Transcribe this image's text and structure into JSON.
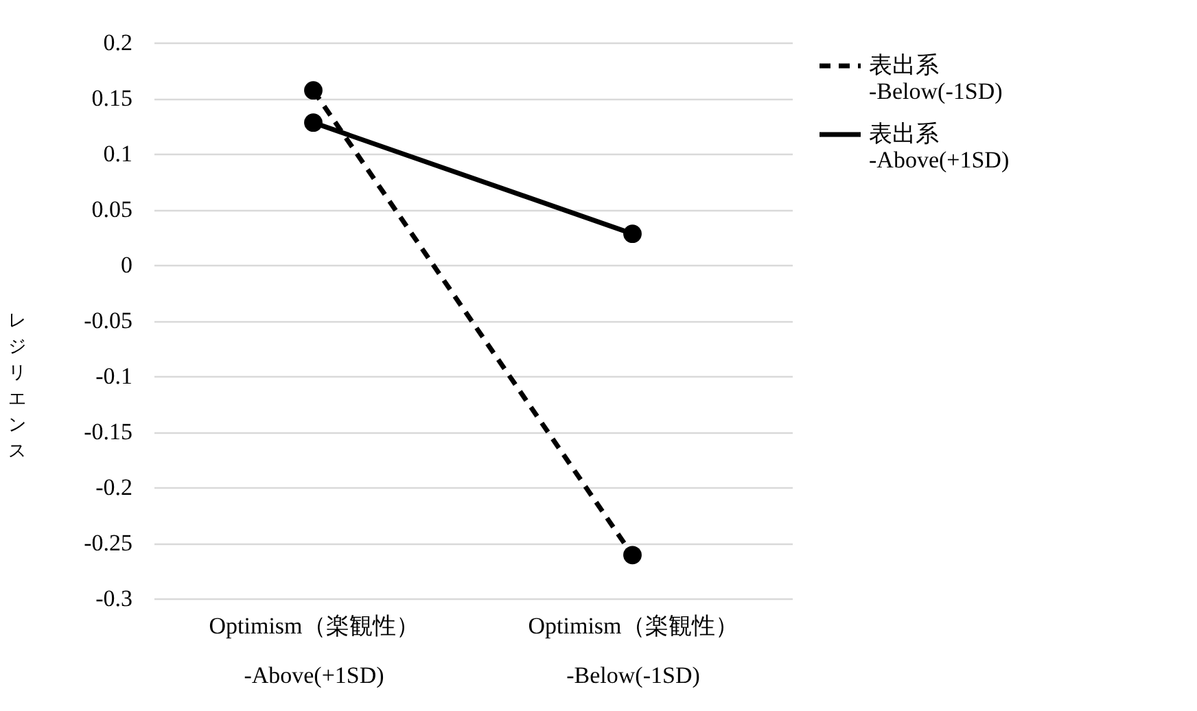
{
  "chart_data": {
    "type": "line",
    "ylabel": "レジリエンス",
    "categories": [
      "Optimism（楽観性）\n-Above(+1SD)",
      "Optimism（楽観性）\n-Below(-1SD)"
    ],
    "series": [
      {
        "name": "表出系\n-Below(-1SD)",
        "color": "#000000",
        "line_style": "dashed",
        "values": [
          0.157,
          -0.261
        ]
      },
      {
        "name": "表出系\n-Above(+1SD)",
        "color": "#000000",
        "line_style": "solid",
        "values": [
          0.128,
          0.028
        ]
      }
    ],
    "ylim": [
      -0.3,
      0.2
    ],
    "yticks": [
      -0.3,
      -0.25,
      -0.2,
      -0.15,
      -0.1,
      -0.05,
      0,
      0.05,
      0.1,
      0.15,
      0.2
    ],
    "grid": "y",
    "legend": "right",
    "marker": "circle"
  }
}
